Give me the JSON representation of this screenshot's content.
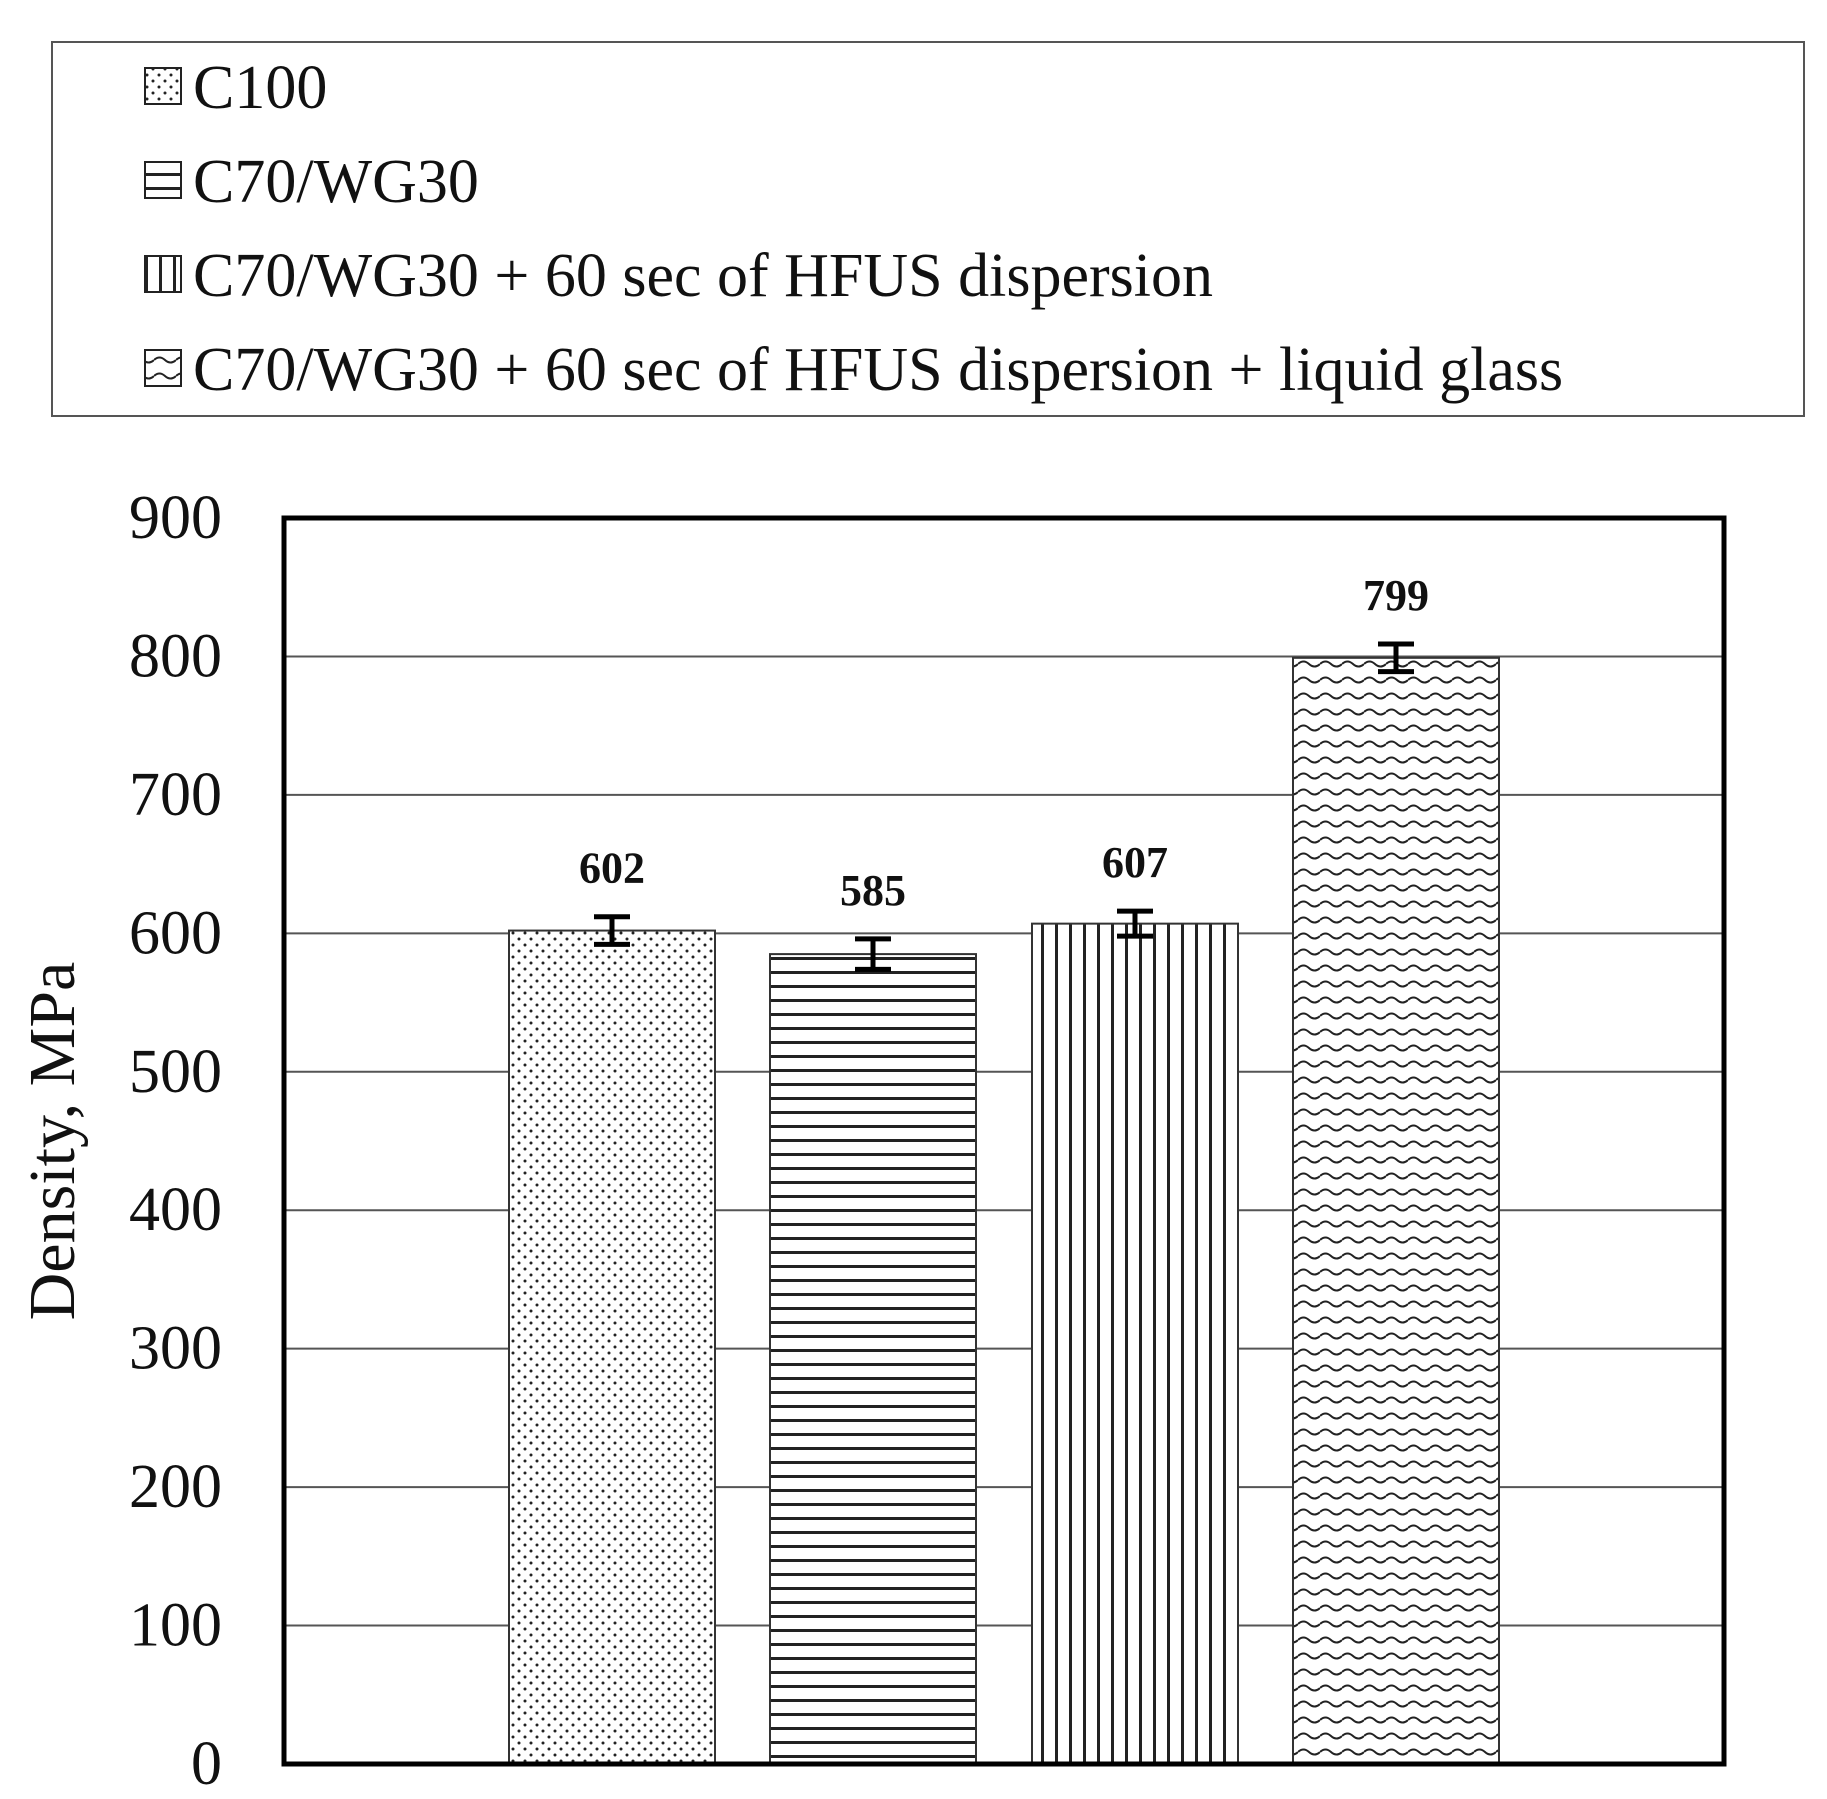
{
  "chart_data": {
    "type": "bar",
    "categories": [
      "C100",
      "C70/WG30",
      "C70/WG30 + 60 sec of HFUS dispersion",
      "C70/WG30 + 60 sec of HFUS dispersion + liquid glass"
    ],
    "values": [
      602,
      585,
      607,
      799
    ],
    "errors": [
      10,
      11,
      9,
      10
    ],
    "data_labels": [
      "602",
      "585",
      "607",
      "799"
    ],
    "legend": [
      {
        "label": "C100",
        "pattern": "dots"
      },
      {
        "label": "C70/WG30",
        "pattern": "horizontal-lines"
      },
      {
        "label": "C70/WG30 + 60 sec of HFUS dispersion",
        "pattern": "vertical-lines"
      },
      {
        "label": "C70/WG30 + 60 sec of HFUS dispersion + liquid glass",
        "pattern": "waves"
      }
    ],
    "legend_position": "top",
    "xlabel": "",
    "ylabel": "Density, MPa",
    "ylim": [
      0,
      900
    ],
    "yticks": [
      "0",
      "100",
      "200",
      "300",
      "400",
      "500",
      "600",
      "700",
      "800",
      "900"
    ],
    "grid": true,
    "colors": {
      "bar_fill": "#ffffff",
      "pattern": "#222222",
      "grid": "#555555",
      "axis": "#000000"
    }
  }
}
